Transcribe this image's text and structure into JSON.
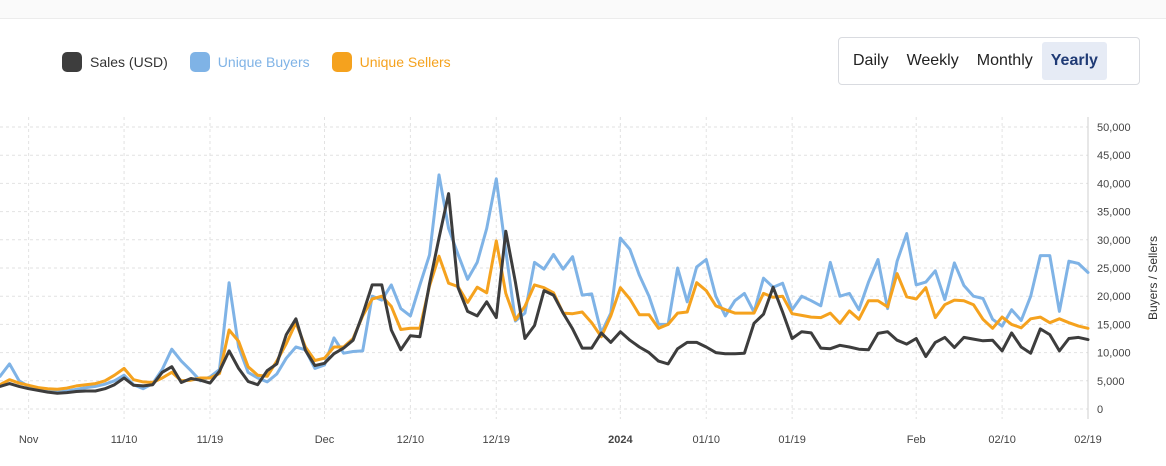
{
  "legend": {
    "items": [
      {
        "label": "Sales (USD)",
        "color": "#3d3d3d"
      },
      {
        "label": "Unique Buyers",
        "color": "#7fb3e6"
      },
      {
        "label": "Unique Sellers",
        "color": "#f5a21e"
      }
    ]
  },
  "period": {
    "options": [
      "Daily",
      "Weekly",
      "Monthly",
      "Yearly"
    ],
    "active": "Yearly"
  },
  "chart_data": {
    "type": "line",
    "ylabel": "Buyers / Sellers",
    "ylim": [
      0,
      50000
    ],
    "yticks": [
      "0",
      "5,000",
      "10,000",
      "15,000",
      "20,000",
      "25,000",
      "30,000",
      "35,000",
      "40,000",
      "45,000",
      "50,000"
    ],
    "ytick_values": [
      0,
      5000,
      10000,
      15000,
      20000,
      25000,
      30000,
      35000,
      40000,
      45000,
      50000
    ],
    "grid": true,
    "x_ticks": [
      {
        "label": "Nov",
        "index": 3,
        "bold": false
      },
      {
        "label": "11/10",
        "index": 13,
        "bold": false
      },
      {
        "label": "11/19",
        "index": 22,
        "bold": false
      },
      {
        "label": "Dec",
        "index": 34,
        "bold": false
      },
      {
        "label": "12/10",
        "index": 43,
        "bold": false
      },
      {
        "label": "12/19",
        "index": 52,
        "bold": false
      },
      {
        "label": "2024",
        "index": 65,
        "bold": true
      },
      {
        "label": "01/10",
        "index": 74,
        "bold": false
      },
      {
        "label": "01/19",
        "index": 83,
        "bold": false
      },
      {
        "label": "Feb",
        "index": 96,
        "bold": false
      },
      {
        "label": "02/10",
        "index": 105,
        "bold": false
      },
      {
        "label": "02/19",
        "index": 114,
        "bold": false
      }
    ],
    "series": [
      {
        "name": "Sales (USD)",
        "color": "#3d3d3d",
        "values": [
          4000,
          4500,
          4000,
          3600,
          3300,
          3000,
          2800,
          2900,
          3100,
          3200,
          3200,
          3600,
          4300,
          5500,
          4200,
          4100,
          4300,
          6500,
          7500,
          4700,
          5400,
          5100,
          4600,
          6700,
          10300,
          7200,
          4900,
          4300,
          6800,
          8000,
          13200,
          16000,
          10400,
          7700,
          8100,
          9800,
          10800,
          12200,
          16800,
          22000,
          22000,
          14000,
          10500,
          13000,
          12800,
          22200,
          30300,
          38200,
          21500,
          17300,
          16500,
          19000,
          16200,
          31500,
          22500,
          12500,
          14800,
          21000,
          20200,
          17000,
          14200,
          10800,
          10800,
          13500,
          11800,
          13700,
          12200,
          11000,
          10000,
          8500,
          8000,
          10700,
          11800,
          11800,
          11000,
          10000,
          9800,
          9800,
          9900,
          15200,
          16800,
          21600,
          17200,
          12500,
          13700,
          13500,
          10800,
          10700,
          11300,
          11000,
          10600,
          10500,
          13400,
          13700,
          12200,
          11500,
          12500,
          9300,
          11800,
          12700,
          10900,
          12700,
          12400,
          12100,
          12200,
          10300,
          13500,
          11000,
          9900,
          14200,
          13200,
          10300,
          12500,
          12700,
          12300
        ]
      },
      {
        "name": "Unique Buyers",
        "color": "#7fb3e6",
        "values": [
          5800,
          8000,
          5000,
          4000,
          3500,
          3300,
          3000,
          3200,
          3500,
          3800,
          4000,
          4400,
          5000,
          6000,
          4300,
          3600,
          4500,
          7000,
          10600,
          8500,
          6800,
          5000,
          5700,
          7000,
          22400,
          11000,
          6500,
          5500,
          4800,
          6200,
          9000,
          11000,
          10500,
          7200,
          7800,
          12600,
          9900,
          10200,
          10300,
          20000,
          19300,
          22000,
          17800,
          16500,
          22000,
          27300,
          41500,
          32000,
          27400,
          23000,
          26000,
          32000,
          40800,
          28000,
          15600,
          17000,
          26000,
          24800,
          27400,
          24800,
          27000,
          20200,
          20400,
          13500,
          17000,
          30300,
          28300,
          23700,
          20000,
          15000,
          15000,
          25000,
          19000,
          25200,
          26500,
          20000,
          16500,
          19200,
          20500,
          17200,
          23200,
          21600,
          22300,
          17600,
          20000,
          19200,
          18300,
          26000,
          20000,
          20500,
          17600,
          22500,
          26500,
          17800,
          26200,
          31100,
          22000,
          22500,
          24500,
          19400,
          25900,
          21900,
          20000,
          19600,
          15900,
          14700,
          17600,
          15700,
          20000,
          27200,
          27200,
          17300,
          26200,
          25800,
          24200
        ]
      },
      {
        "name": "Unique Sellers",
        "color": "#f5a21e",
        "values": [
          4300,
          5200,
          4600,
          4200,
          3800,
          3600,
          3500,
          3700,
          4100,
          4300,
          4500,
          5000,
          6000,
          7200,
          5200,
          4800,
          4700,
          5500,
          6500,
          5000,
          5100,
          5500,
          5500,
          6300,
          14000,
          12000,
          7500,
          6000,
          5800,
          8500,
          11600,
          15300,
          11000,
          8600,
          9000,
          11000,
          11000,
          12500,
          16500,
          19500,
          20000,
          18200,
          14100,
          14300,
          14300,
          21800,
          27100,
          22300,
          21700,
          18900,
          21600,
          20600,
          29800,
          20500,
          15800,
          18200,
          22000,
          21500,
          20600,
          17000,
          16900,
          17200,
          15300,
          12800,
          16500,
          21500,
          19500,
          16700,
          16700,
          14300,
          15000,
          17000,
          17200,
          22400,
          21000,
          18300,
          17600,
          17000,
          17000,
          17000,
          20500,
          19800,
          20000,
          16900,
          16600,
          16300,
          16200,
          17000,
          15200,
          17400,
          15900,
          19200,
          19200,
          18100,
          24000,
          19900,
          19500,
          21500,
          16200,
          18500,
          19300,
          19200,
          18500,
          15900,
          14300,
          16300,
          15000,
          14400,
          16000,
          16300,
          15300,
          16000,
          15300,
          14700,
          14300
        ]
      }
    ]
  }
}
